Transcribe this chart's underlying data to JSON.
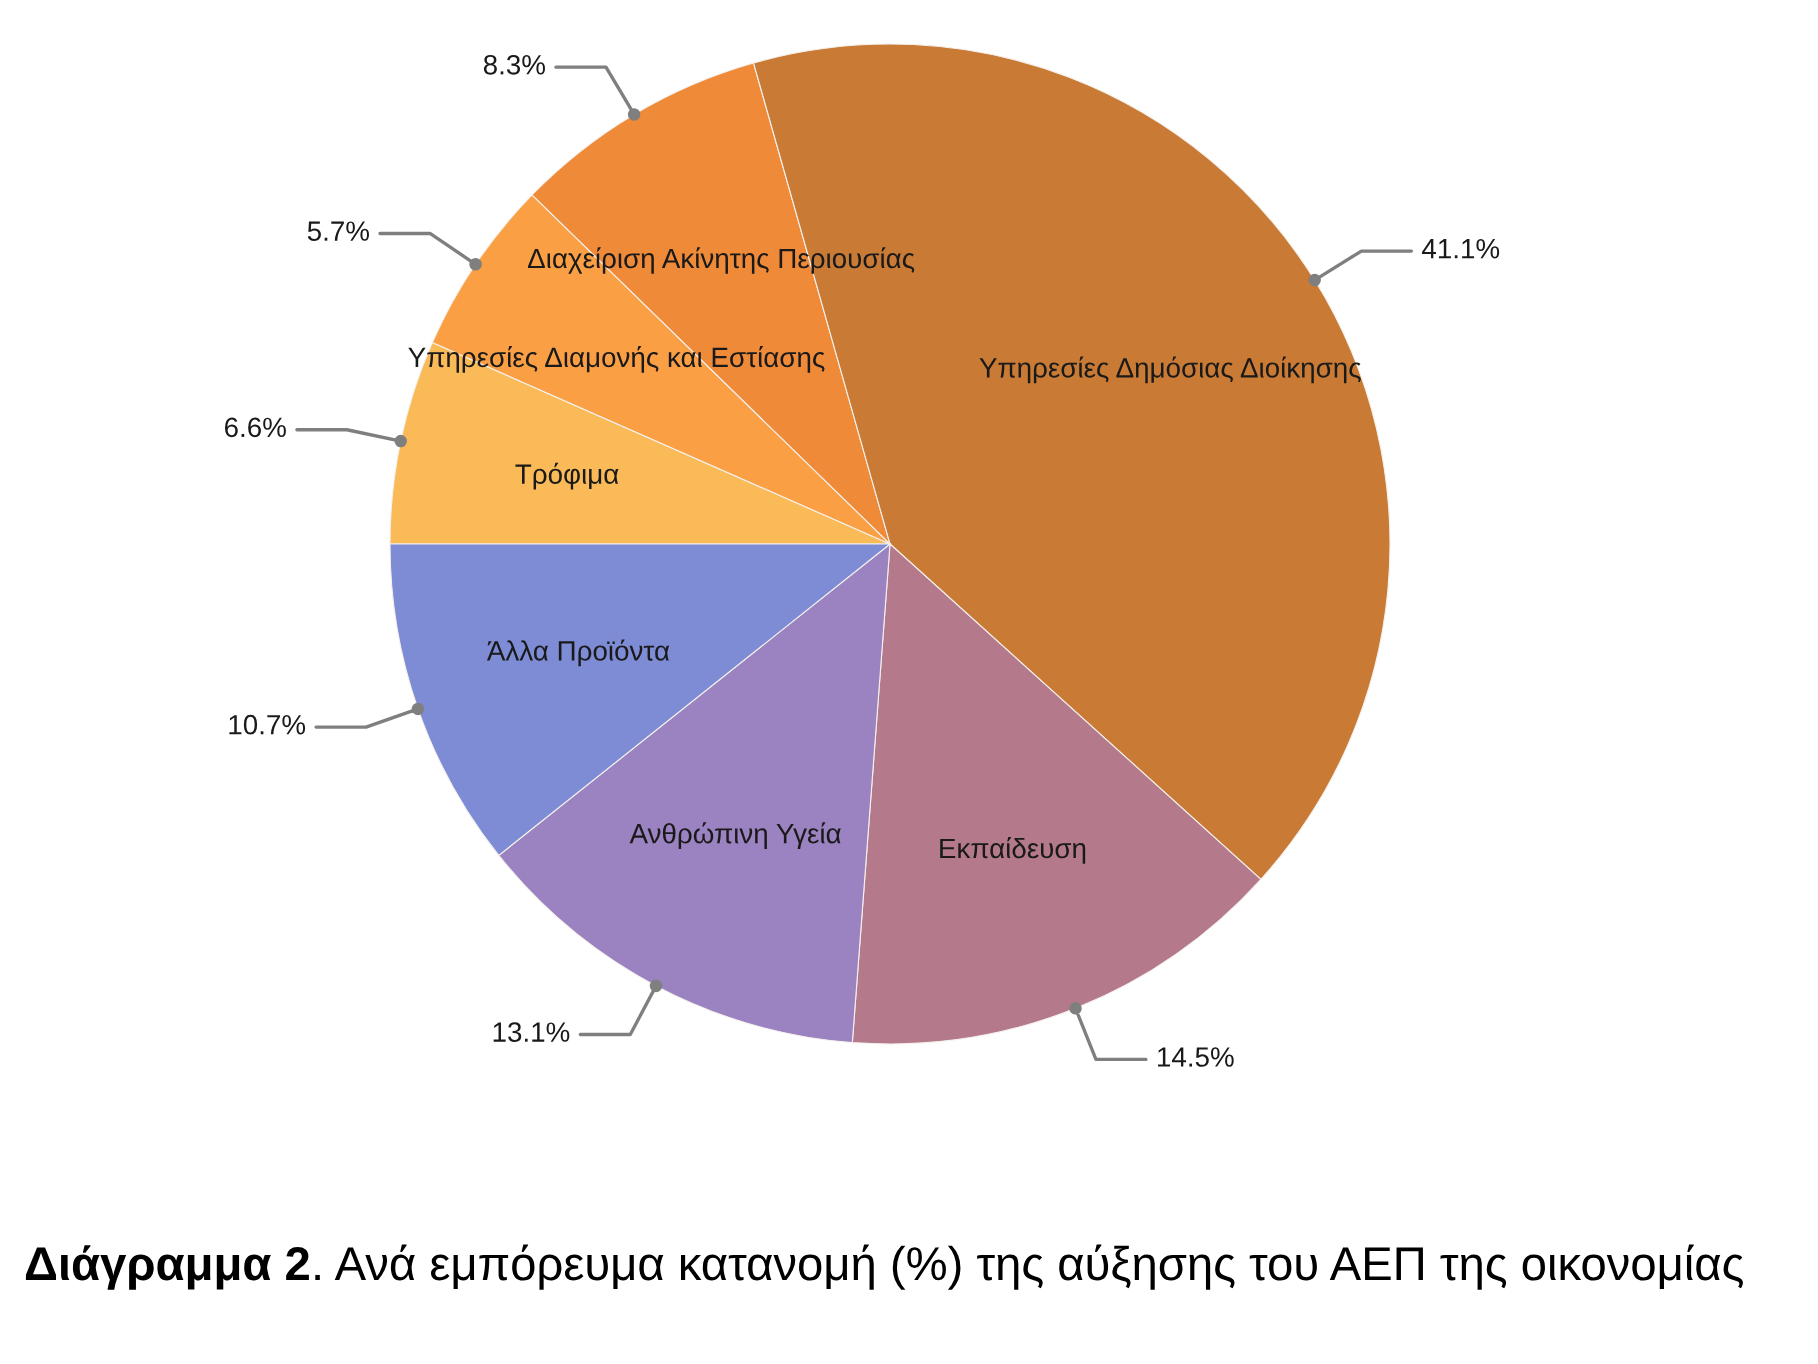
{
  "chart_data": {
    "type": "pie",
    "title": "Διάγραμμα 2. Ανά εμπόρευμα κατανομή (%) της αύξησης του ΑΕΠ της οικονομίας",
    "categories": [
      "Τρόφιμα",
      "Υπηρεσίες Διαμονής και Εστίασης",
      "Διαχείριση Ακίνητης Περιουσίας",
      "Υπηρεσίες Δημόσιας Διοίκησης",
      "Εκπαίδευση",
      "Ανθρώπινη Υγεία",
      "Άλλα Προϊόντα"
    ],
    "values": [
      6.6,
      5.7,
      8.3,
      41.1,
      14.5,
      13.1,
      10.7
    ],
    "colors": [
      "#f9ba57",
      "#fb9f44",
      "#ef8a38",
      "#c97a35",
      "#b47a8b",
      "#9b82c0",
      "#7d8cd4"
    ],
    "value_labels": [
      "6.6%",
      "5.7%",
      "8.3%",
      "41.1%",
      "14.5%",
      "13.1%",
      "10.7%"
    ]
  }
}
